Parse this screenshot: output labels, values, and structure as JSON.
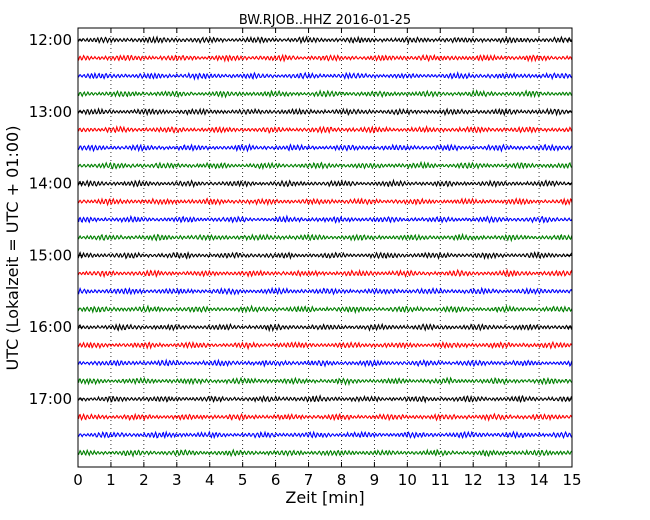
{
  "chart_data": {
    "type": "line",
    "title": "BW.RJOB..HHZ 2016-01-25",
    "xlabel": "Zeit  [min]",
    "ylabel": "UTC (Lokalzeit = UTC + 01:00)",
    "xlim": [
      0,
      15
    ],
    "x_ticks": [
      "0",
      "1",
      "2",
      "3",
      "4",
      "5",
      "6",
      "7",
      "8",
      "9",
      "10",
      "11",
      "12",
      "13",
      "14",
      "15"
    ],
    "y_ticks": [
      "12:00",
      "13:00",
      "14:00",
      "15:00",
      "16:00",
      "17:00"
    ],
    "rows_start": "12:00",
    "row_interval_min": 15,
    "row_count": 24,
    "color_cycle": [
      "#000000",
      "#ff0000",
      "#0000ff",
      "#008000"
    ],
    "grid": "vertical-dotted",
    "legend": "none"
  }
}
